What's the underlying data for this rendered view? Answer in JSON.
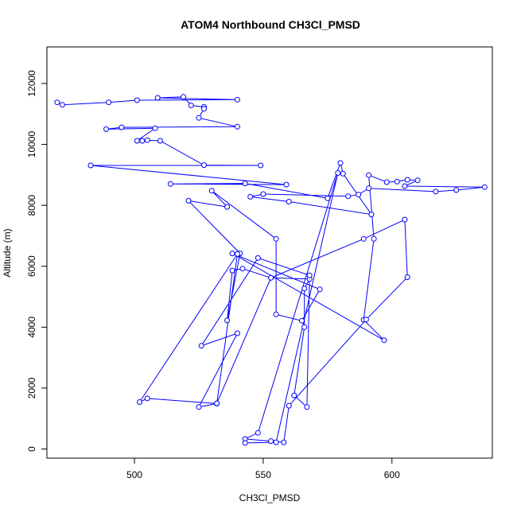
{
  "chart_data": {
    "type": "line",
    "title": "ATOM4 Northbound CH3Cl_PMSD",
    "xlabel": "CH3Cl_PMSD",
    "ylabel": "Altitude (m)",
    "xlim": [
      466,
      639
    ],
    "ylim": [
      -300,
      13200
    ],
    "xticks": [
      500,
      550,
      600
    ],
    "yticks": [
      0,
      2000,
      4000,
      6000,
      8000,
      10000,
      12000
    ],
    "grid": false,
    "line_color": "#0000ff",
    "marker": "open-circle",
    "series": [
      {
        "points": [
          [
            470,
            11380
          ],
          [
            472,
            11300
          ],
          [
            490,
            11380
          ],
          [
            501,
            11450
          ],
          [
            540,
            11470
          ],
          [
            509,
            11530
          ],
          [
            519,
            11560
          ],
          [
            522,
            11280
          ],
          [
            527,
            11230
          ],
          [
            527,
            11170
          ],
          [
            525,
            10870
          ],
          [
            540,
            10580
          ],
          [
            495,
            10560
          ],
          [
            489,
            10500
          ],
          [
            508,
            10530
          ],
          [
            501,
            10120
          ],
          [
            503,
            10120
          ],
          [
            505,
            10140
          ],
          [
            510,
            10120
          ],
          [
            527,
            9320
          ],
          [
            549,
            9310
          ],
          [
            483,
            9310
          ],
          [
            559,
            8680
          ],
          [
            514,
            8700
          ],
          [
            543,
            8720
          ],
          [
            575,
            8230
          ],
          [
            580,
            9390
          ],
          [
            581,
            9040
          ],
          [
            592,
            7700
          ],
          [
            560,
            8120
          ],
          [
            545,
            8280
          ],
          [
            550,
            8370
          ],
          [
            583,
            8300
          ],
          [
            587,
            8350
          ],
          [
            591,
            8560
          ],
          [
            617,
            8450
          ],
          [
            625,
            8500
          ],
          [
            636,
            8600
          ],
          [
            605,
            8630
          ],
          [
            610,
            8820
          ],
          [
            606,
            8840
          ],
          [
            602,
            8780
          ],
          [
            598,
            8760
          ],
          [
            591,
            8990
          ],
          [
            593,
            6900
          ],
          [
            589,
            4240
          ],
          [
            597,
            3570
          ],
          [
            538,
            6420
          ],
          [
            572,
            5240
          ],
          [
            565,
            4210
          ],
          [
            555,
            4420
          ],
          [
            555,
            6900
          ],
          [
            530,
            8480
          ],
          [
            536,
            7950
          ],
          [
            521,
            8150
          ],
          [
            541,
            6420
          ],
          [
            536,
            4220
          ],
          [
            538,
            5860
          ],
          [
            542,
            5920
          ],
          [
            553,
            5620
          ],
          [
            568,
            5580
          ],
          [
            566,
            5270
          ],
          [
            566,
            4000
          ],
          [
            562,
            1760
          ],
          [
            567,
            1380
          ],
          [
            568,
            5700
          ],
          [
            548,
            6270
          ],
          [
            526,
            3390
          ],
          [
            540,
            3800
          ],
          [
            525,
            1380
          ],
          [
            532,
            1490
          ],
          [
            505,
            1660
          ],
          [
            502,
            1540
          ],
          [
            540,
            6400
          ],
          [
            532,
            1500
          ],
          [
            553,
            5620
          ],
          [
            589,
            6900
          ],
          [
            605,
            7530
          ],
          [
            606,
            5640
          ],
          [
            590,
            4250
          ],
          [
            560,
            1420
          ],
          [
            558,
            220
          ],
          [
            553,
            260
          ],
          [
            543,
            330
          ],
          [
            548,
            530
          ],
          [
            579,
            9060
          ],
          [
            555,
            220
          ],
          [
            543,
            200
          ]
        ]
      }
    ]
  }
}
